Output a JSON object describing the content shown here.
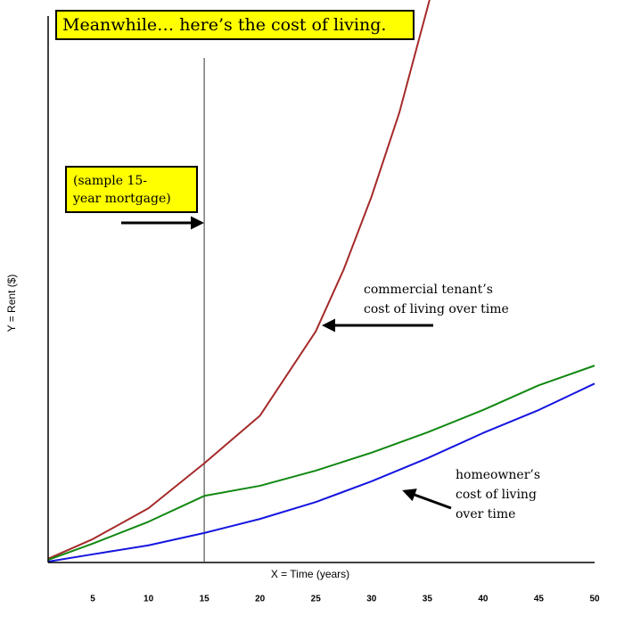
{
  "chart_data": {
    "type": "line",
    "title": "Meanwhile… here’s the cost of living.",
    "x_label": "X = Time (years)",
    "y_label": "Y = Rent ($)",
    "xlim": [
      1,
      50
    ],
    "ylim": [
      0,
      100
    ],
    "xticks": [
      5,
      10,
      15,
      20,
      25,
      30,
      35,
      40,
      45,
      50
    ],
    "vline": 15,
    "series": [
      {
        "color": "#a52a2a",
        "x": [
          1,
          5,
          10,
          15,
          20,
          25,
          27.5,
          30,
          32.5,
          35.2
        ],
        "values": [
          0.5,
          4,
          9.5,
          17.5,
          26,
          41,
          52,
          65,
          80,
          100
        ]
      },
      {
        "color": "#118811",
        "x": [
          1,
          5,
          10,
          15,
          20,
          25,
          30,
          35,
          40,
          45,
          50
        ],
        "values": [
          0.3,
          3.2,
          7.1,
          11.7,
          13.5,
          16.2,
          19.4,
          23,
          27,
          31.4,
          34.9
        ]
      },
      {
        "color": "#1515e0",
        "x": [
          1,
          5,
          10,
          15,
          20,
          25,
          30,
          35,
          40,
          45,
          50
        ],
        "values": [
          0,
          1.3,
          2.9,
          5.1,
          7.6,
          10.6,
          14.3,
          18.4,
          22.9,
          27,
          31.7
        ]
      }
    ],
    "annotations": [
      {
        "lines": [
          "(sample 15-",
          "year mortgage)"
        ]
      },
      {
        "lines": [
          "commercial tenant’s",
          "cost of living over time"
        ]
      },
      {
        "lines": [
          "homeowner’s",
          "cost of living",
          "over time"
        ]
      }
    ]
  }
}
